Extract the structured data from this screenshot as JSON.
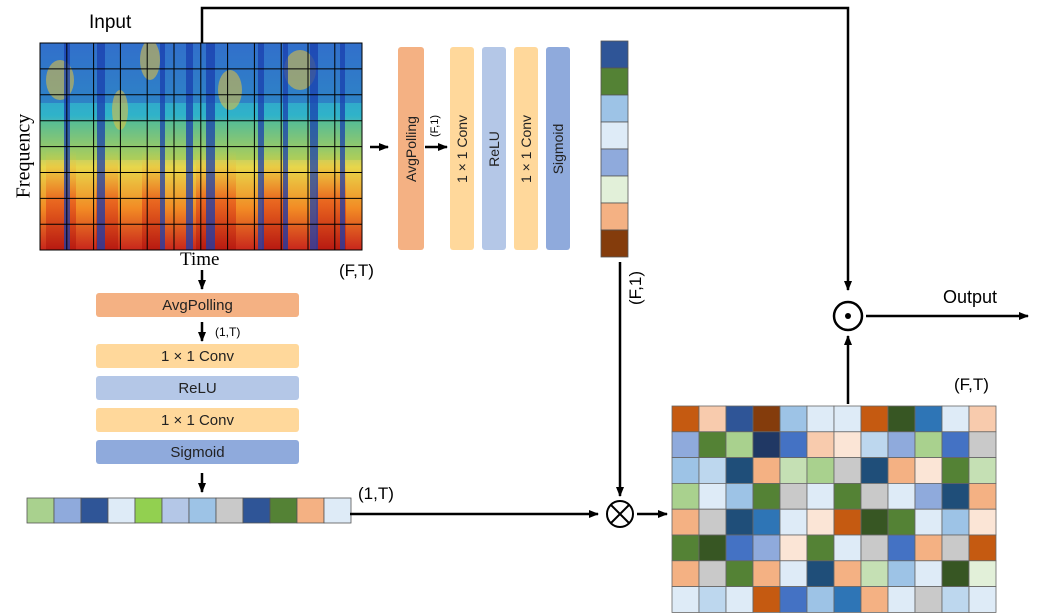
{
  "labels": {
    "input": "Input",
    "frequency": "Frequency",
    "time": "Time",
    "ft_input": "(F,T)",
    "ft_output": "(F,T)",
    "f1_small": "(F,1)",
    "f1_vertical": "(F,1)",
    "onet_small": "(1,T)",
    "onet": "(1,T)",
    "output": "Output"
  },
  "freq_branch": {
    "blocks": [
      {
        "label": "AvgPolling",
        "color": "#F4B183"
      },
      {
        "label": "1 × 1 Conv",
        "color": "#FFD89B"
      },
      {
        "label": "ReLU",
        "color": "#B4C7E7"
      },
      {
        "label": "1 × 1 Conv",
        "color": "#FFD89B"
      },
      {
        "label": "Sigmoid",
        "color": "#8FAADC"
      }
    ],
    "vector_colors": [
      "#2F5597",
      "#548235",
      "#9DC3E6",
      "#DEEBF7",
      "#8FAADC",
      "#E2F0D9",
      "#F4B183",
      "#843C0C"
    ]
  },
  "time_branch": {
    "blocks": [
      {
        "label": "AvgPolling",
        "color": "#F4B183"
      },
      {
        "label": "1 × 1 Conv",
        "color": "#FFD89B"
      },
      {
        "label": "ReLU",
        "color": "#B4C7E7"
      },
      {
        "label": "1 × 1 Conv",
        "color": "#FFD89B"
      },
      {
        "label": "Sigmoid",
        "color": "#8FAADC"
      }
    ],
    "vector_colors": [
      "#A9D18E",
      "#8FAADC",
      "#2F5597",
      "#DEEBF7",
      "#92D050",
      "#B4C7E7",
      "#9DC3E6",
      "#C9C9C9",
      "#2F5597",
      "#548235",
      "#F4B183",
      "#DEEBF7"
    ]
  },
  "operators": {
    "multiply": "⊗",
    "hadamard": "⊙"
  },
  "output_grid": {
    "rows": [
      [
        "#C55A11",
        "#F8CBAD",
        "#2F5597",
        "#843C0C",
        "#9DC3E6",
        "#DEEBF7",
        "#DEEBF7",
        "#C55A11",
        "#375623",
        "#2E75B6",
        "#DEEBF7",
        "#F8CBAD"
      ],
      [
        "#8FAADC",
        "#548235",
        "#A9D18E",
        "#203864",
        "#4472C4",
        "#F8CBAD",
        "#FBE5D6",
        "#BDD7EE",
        "#8FAADC",
        "#A9D18E",
        "#4472C4",
        "#C9C9C9"
      ],
      [
        "#9DC3E6",
        "#BDD7EE",
        "#1F4E79",
        "#F4B183",
        "#C5E0B4",
        "#A9D18E",
        "#C9C9C9",
        "#1F4E79",
        "#F4B183",
        "#FBE5D6",
        "#548235",
        "#C5E0B4"
      ],
      [
        "#A9D18E",
        "#DEEBF7",
        "#9DC3E6",
        "#548235",
        "#C9C9C9",
        "#DEEBF7",
        "#548235",
        "#C9C9C9",
        "#DEEBF7",
        "#8FAADC",
        "#1F4E79",
        "#F4B183"
      ],
      [
        "#F4B183",
        "#C9C9C9",
        "#1F4E79",
        "#2E75B6",
        "#DEEBF7",
        "#FBE5D6",
        "#C55A11",
        "#375623",
        "#548235",
        "#DEEBF7",
        "#9DC3E6",
        "#FBE5D6"
      ],
      [
        "#548235",
        "#375623",
        "#4472C4",
        "#8FAADC",
        "#FBE5D6",
        "#548235",
        "#DEEBF7",
        "#C9C9C9",
        "#4472C4",
        "#F4B183",
        "#C9C9C9",
        "#C55A11"
      ],
      [
        "#F4B183",
        "#C9C9C9",
        "#548235",
        "#F4B183",
        "#DEEBF7",
        "#1F4E79",
        "#F4B183",
        "#C5E0B4",
        "#9DC3E6",
        "#DEEBF7",
        "#375623",
        "#E2F0D9"
      ],
      [
        "#DEEBF7",
        "#BDD7EE",
        "#DEEBF7",
        "#C55A11",
        "#4472C4",
        "#9DC3E6",
        "#2E75B6",
        "#F4B183",
        "#DEEBF7",
        "#C9C9C9",
        "#BDD7EE",
        "#DEEBF7"
      ]
    ]
  }
}
